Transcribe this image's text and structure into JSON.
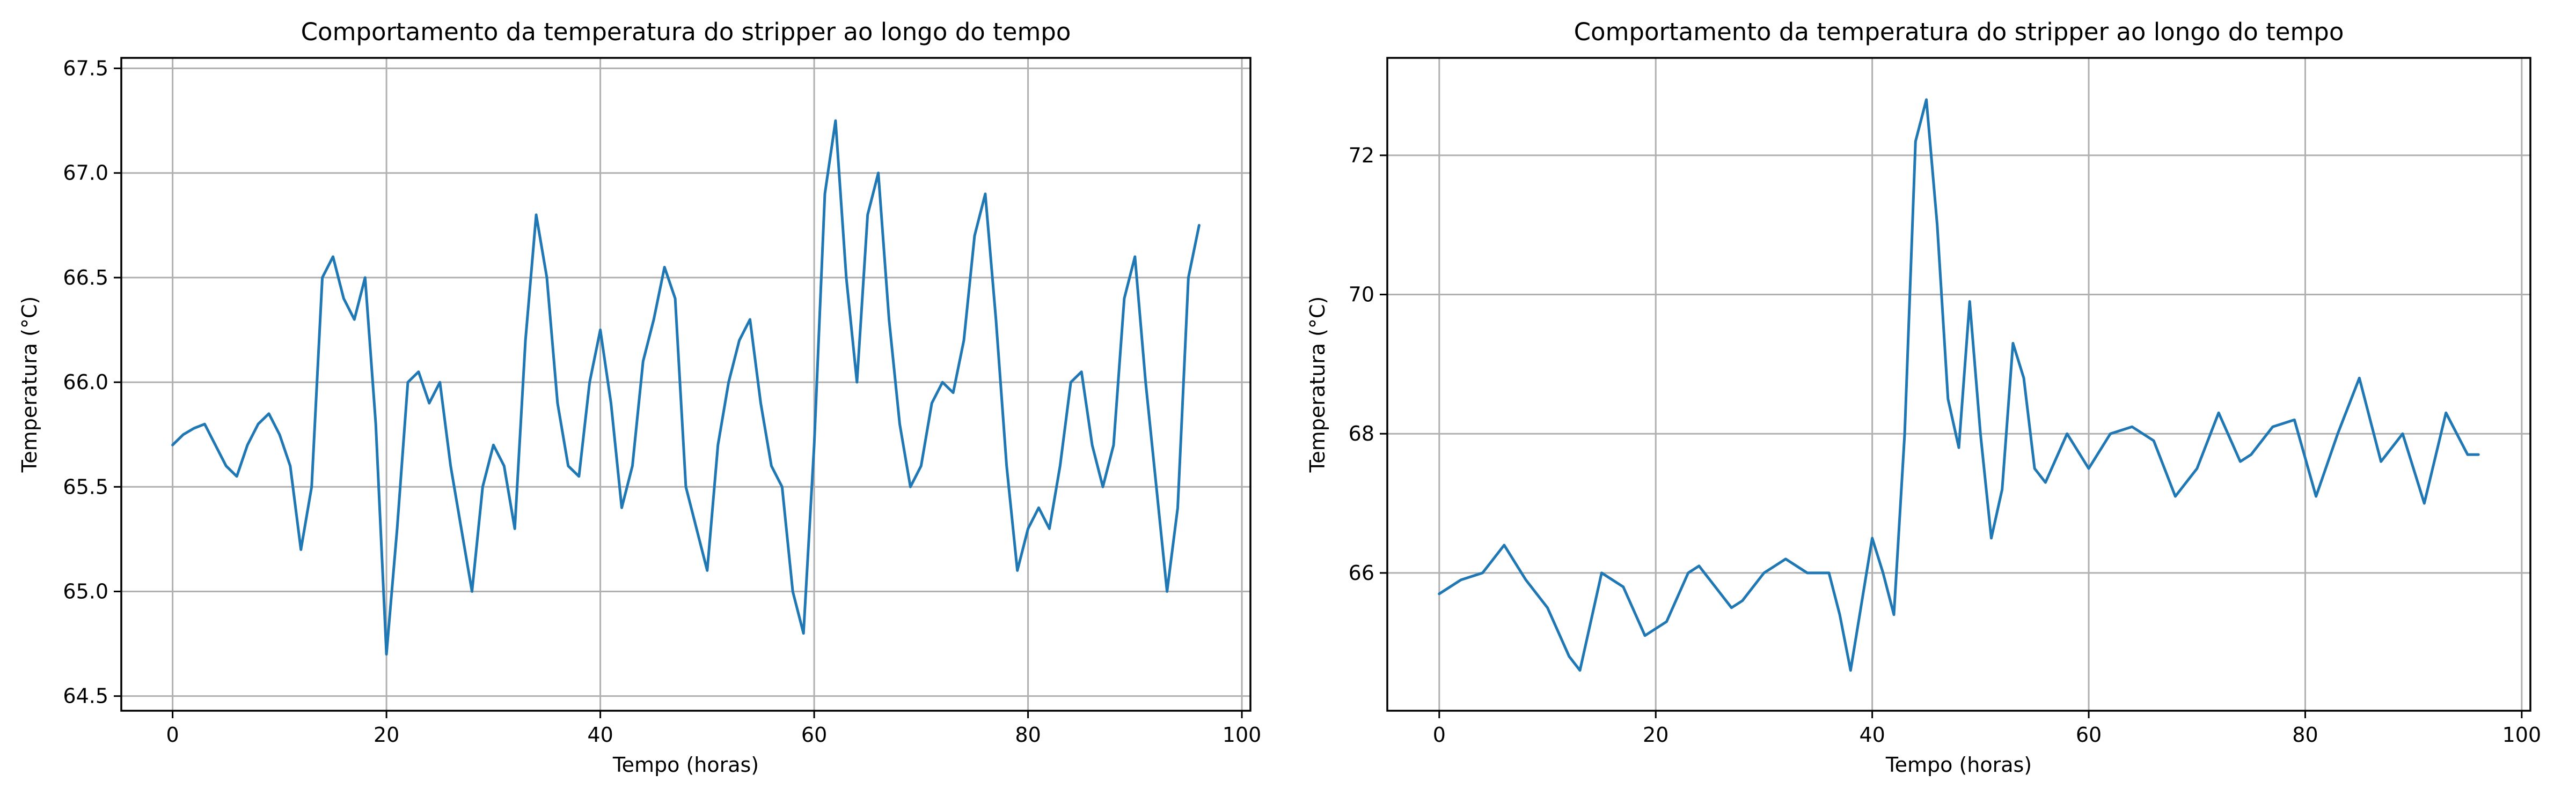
{
  "chart_data": [
    {
      "type": "line",
      "title": "Comportamento da temperatura do stripper ao longo do tempo",
      "xlabel": "Tempo (horas)",
      "ylabel": "Temperatura (°C)",
      "xlim": [
        -4.8,
        100.8
      ],
      "ylim": [
        64.43,
        67.55
      ],
      "xticks": [
        0,
        20,
        40,
        60,
        80,
        100
      ],
      "xtick_labels": [
        "0",
        "20",
        "40",
        "60",
        "80",
        "100"
      ],
      "yticks": [
        64.5,
        65.0,
        65.5,
        66.0,
        66.5,
        67.0,
        67.5
      ],
      "ytick_labels": [
        "64.5",
        "65.0",
        "65.5",
        "66.0",
        "66.5",
        "67.0",
        "67.5"
      ],
      "grid": true,
      "color": "#1f77b4",
      "series": [
        {
          "x": [
            0,
            1,
            2,
            3,
            4,
            5,
            6,
            7,
            8,
            9,
            10,
            11,
            12,
            13,
            14,
            15,
            16,
            17,
            18,
            19,
            20,
            21,
            22,
            23,
            24,
            25,
            26,
            27,
            28,
            29,
            30,
            31,
            32,
            33,
            34,
            35,
            36,
            37,
            38,
            39,
            40,
            41,
            42,
            43,
            44,
            45,
            46,
            47,
            48,
            49,
            50,
            51,
            52,
            53,
            54,
            55,
            56,
            57,
            58,
            59,
            60,
            61,
            62,
            63,
            64,
            65,
            66,
            67,
            68,
            69,
            70,
            71,
            72,
            73,
            74,
            75,
            76,
            77,
            78,
            79,
            80,
            81,
            82,
            83,
            84,
            85,
            86,
            87,
            88,
            89,
            90,
            91,
            92,
            93,
            94,
            95,
            96
          ],
          "y": [
            65.7,
            65.75,
            65.78,
            65.8,
            65.7,
            65.6,
            65.55,
            65.7,
            65.8,
            65.85,
            65.75,
            65.6,
            65.2,
            65.5,
            66.5,
            66.6,
            66.4,
            66.3,
            66.5,
            65.8,
            64.7,
            65.3,
            66.0,
            66.05,
            65.9,
            66.0,
            65.6,
            65.3,
            65.0,
            65.5,
            65.7,
            65.6,
            65.3,
            66.2,
            66.8,
            66.5,
            65.9,
            65.6,
            65.55,
            66.0,
            66.25,
            65.9,
            65.4,
            65.6,
            66.1,
            66.3,
            66.55,
            66.4,
            65.5,
            65.3,
            65.1,
            65.7,
            66.0,
            66.2,
            66.3,
            65.9,
            65.6,
            65.5,
            65.0,
            64.8,
            65.7,
            66.9,
            67.25,
            66.5,
            66.0,
            66.8,
            67.0,
            66.3,
            65.8,
            65.5,
            65.6,
            65.9,
            66.0,
            65.95,
            66.2,
            66.7,
            66.9,
            66.3,
            65.6,
            65.1,
            65.3,
            65.4,
            65.3,
            65.6,
            66.0,
            66.05,
            65.7,
            65.5,
            65.7,
            66.4,
            66.6,
            66.0,
            65.5,
            65.0,
            65.4,
            66.5,
            66.75
          ]
        }
      ]
    },
    {
      "type": "line",
      "title": "Comportamento da temperatura do stripper ao longo do tempo",
      "xlabel": "Tempo (horas)",
      "ylabel": "Temperatura (°C)",
      "xlim": [
        -4.8,
        100.8
      ],
      "ylim": [
        64.02,
        73.4
      ],
      "xticks": [
        0,
        20,
        40,
        60,
        80,
        100
      ],
      "xtick_labels": [
        "0",
        "20",
        "40",
        "60",
        "80",
        "100"
      ],
      "yticks": [
        66,
        68,
        70,
        72
      ],
      "ytick_labels": [
        "66",
        "68",
        "70",
        "72"
      ],
      "grid": true,
      "color": "#1f77b4",
      "series": [
        {
          "x": [
            0,
            2,
            4,
            6,
            8,
            10,
            12,
            13,
            15,
            17,
            19,
            21,
            23,
            24,
            25,
            27,
            28,
            30,
            32,
            34,
            36,
            37,
            38,
            40,
            41,
            42,
            43,
            44,
            45,
            46,
            47,
            48,
            49,
            50,
            51,
            52,
            53,
            54,
            55,
            56,
            58,
            60,
            62,
            64,
            66,
            68,
            70,
            72,
            74,
            75,
            77,
            79,
            81,
            83,
            85,
            87,
            89,
            91,
            93,
            95,
            96
          ],
          "y": [
            65.7,
            65.9,
            66.0,
            66.4,
            65.9,
            65.5,
            64.8,
            64.6,
            66.0,
            65.8,
            65.1,
            65.3,
            66.0,
            66.1,
            65.9,
            65.5,
            65.6,
            66.0,
            66.2,
            66.0,
            66.0,
            65.4,
            64.6,
            66.5,
            66.0,
            65.4,
            68.0,
            72.2,
            72.8,
            71.0,
            68.5,
            67.8,
            69.9,
            68.0,
            66.5,
            67.2,
            69.3,
            68.8,
            67.5,
            67.3,
            68.0,
            67.5,
            68.0,
            68.1,
            67.9,
            67.1,
            67.5,
            68.3,
            67.6,
            67.7,
            68.1,
            68.2,
            67.1,
            68.0,
            68.8,
            67.6,
            68.0,
            67.0,
            68.3,
            67.7,
            67.7
          ]
        }
      ]
    }
  ]
}
